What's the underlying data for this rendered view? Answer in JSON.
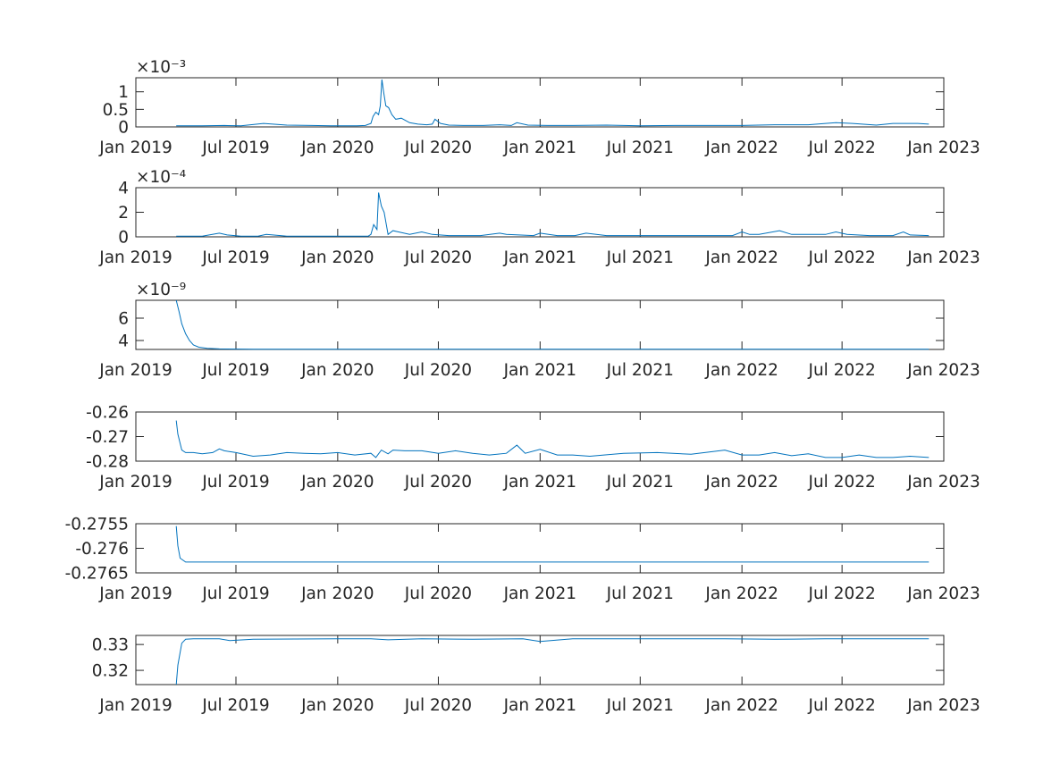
{
  "chart_data": [
    {
      "type": "line",
      "x_ticks": [
        "Jan 2019",
        "Jul 2019",
        "Jan 2020",
        "Jul 2020",
        "Jan 2021",
        "Jul 2021",
        "Jan 2022",
        "Jul 2022",
        "Jan 2023"
      ],
      "y_ticks": [
        "0",
        "0.5",
        "1"
      ],
      "y_tick_values": [
        0,
        0.5,
        1
      ],
      "exponent": "×10⁻³",
      "ylim": [
        0,
        1.4
      ],
      "series": [
        {
          "color": "#0072bd",
          "x": [
            "2019-03-15",
            "2019-05-01",
            "2019-06-10",
            "2019-07-10",
            "2019-08-20",
            "2019-10-01",
            "2019-11-15",
            "2019-12-20",
            "2020-01-25",
            "2020-02-05",
            "2020-02-20",
            "2020-03-01",
            "2020-03-05",
            "2020-03-10",
            "2020-03-15",
            "2020-03-18",
            "2020-03-21",
            "2020-03-24",
            "2020-03-28",
            "2020-04-02",
            "2020-04-08",
            "2020-04-15",
            "2020-04-25",
            "2020-05-10",
            "2020-05-25",
            "2020-06-10",
            "2020-06-20",
            "2020-06-25",
            "2020-07-05",
            "2020-07-20",
            "2020-08-15",
            "2020-09-20",
            "2020-10-20",
            "2020-11-10",
            "2020-11-20",
            "2020-12-10",
            "2021-01-15",
            "2021-03-01",
            "2021-05-01",
            "2021-07-01",
            "2021-09-01",
            "2021-11-01",
            "2022-01-01",
            "2022-03-01",
            "2022-05-01",
            "2022-06-01",
            "2022-06-20",
            "2022-07-20",
            "2022-09-01",
            "2022-10-01",
            "2022-11-15",
            "2022-12-05"
          ],
          "y": [
            0.03,
            0.03,
            0.04,
            0.03,
            0.1,
            0.05,
            0.04,
            0.03,
            0.03,
            0.03,
            0.04,
            0.1,
            0.3,
            0.42,
            0.35,
            0.6,
            1.35,
            1.0,
            0.6,
            0.55,
            0.35,
            0.22,
            0.25,
            0.12,
            0.08,
            0.06,
            0.08,
            0.22,
            0.1,
            0.05,
            0.04,
            0.04,
            0.06,
            0.04,
            0.12,
            0.05,
            0.04,
            0.04,
            0.05,
            0.03,
            0.04,
            0.04,
            0.04,
            0.06,
            0.06,
            0.1,
            0.12,
            0.1,
            0.05,
            0.1,
            0.1,
            0.08
          ]
        }
      ]
    },
    {
      "type": "line",
      "x_ticks": [
        "Jan 2019",
        "Jul 2019",
        "Jan 2020",
        "Jul 2020",
        "Jan 2021",
        "Jul 2021",
        "Jan 2022",
        "Jul 2022",
        "Jan 2023"
      ],
      "y_ticks": [
        "0",
        "2",
        "4"
      ],
      "y_tick_values": [
        0,
        2,
        4
      ],
      "exponent": "×10⁻⁴",
      "ylim": [
        0,
        4
      ],
      "series": [
        {
          "color": "#0072bd",
          "x": [
            "2019-03-15",
            "2019-05-01",
            "2019-06-01",
            "2019-06-15",
            "2019-07-10",
            "2019-08-10",
            "2019-08-25",
            "2019-10-01",
            "2019-12-01",
            "2020-02-01",
            "2020-02-25",
            "2020-03-01",
            "2020-03-06",
            "2020-03-12",
            "2020-03-15",
            "2020-03-20",
            "2020-03-25",
            "2020-04-01",
            "2020-04-10",
            "2020-04-20",
            "2020-05-10",
            "2020-06-01",
            "2020-06-20",
            "2020-07-20",
            "2020-09-15",
            "2020-10-20",
            "2020-11-01",
            "2020-12-20",
            "2021-01-01",
            "2021-02-01",
            "2021-03-05",
            "2021-03-25",
            "2021-05-01",
            "2021-07-01",
            "2021-10-01",
            "2021-12-15",
            "2022-01-01",
            "2022-01-15",
            "2022-02-01",
            "2022-03-10",
            "2022-04-01",
            "2022-06-01",
            "2022-06-20",
            "2022-07-10",
            "2022-08-20",
            "2022-10-01",
            "2022-10-20",
            "2022-11-01",
            "2022-12-05"
          ],
          "y": [
            0.05,
            0.05,
            0.3,
            0.15,
            0.05,
            0.05,
            0.2,
            0.05,
            0.05,
            0.05,
            0.05,
            0.2,
            1.0,
            0.6,
            3.6,
            2.5,
            2.0,
            0.2,
            0.5,
            0.4,
            0.2,
            0.4,
            0.2,
            0.1,
            0.1,
            0.3,
            0.2,
            0.1,
            0.3,
            0.1,
            0.1,
            0.3,
            0.1,
            0.1,
            0.1,
            0.1,
            0.4,
            0.2,
            0.2,
            0.5,
            0.2,
            0.2,
            0.4,
            0.2,
            0.1,
            0.1,
            0.4,
            0.15,
            0.1
          ]
        }
      ]
    },
    {
      "type": "line",
      "x_ticks": [
        "Jan 2019",
        "Jul 2019",
        "Jan 2020",
        "Jul 2020",
        "Jan 2021",
        "Jul 2021",
        "Jan 2022",
        "Jul 2022",
        "Jan 2023"
      ],
      "y_ticks": [
        "4",
        "6"
      ],
      "y_tick_values": [
        4,
        6
      ],
      "exponent": "×10⁻⁹",
      "ylim": [
        3.2,
        7.6
      ],
      "series": [
        {
          "color": "#0072bd",
          "x": [
            "2019-03-15",
            "2019-03-20",
            "2019-03-25",
            "2019-04-01",
            "2019-04-08",
            "2019-04-15",
            "2019-04-25",
            "2019-05-10",
            "2019-06-01",
            "2019-08-01",
            "2020-01-01",
            "2021-01-01",
            "2022-01-01",
            "2022-12-05"
          ],
          "y": [
            7.6,
            6.6,
            5.5,
            4.6,
            4.0,
            3.6,
            3.4,
            3.3,
            3.25,
            3.22,
            3.22,
            3.22,
            3.22,
            3.22
          ]
        }
      ]
    },
    {
      "type": "line",
      "x_ticks": [
        "Jan 2019",
        "Jul 2019",
        "Jan 2020",
        "Jul 2020",
        "Jan 2021",
        "Jul 2021",
        "Jan 2022",
        "Jul 2022",
        "Jan 2023"
      ],
      "y_ticks": [
        "-0.28",
        "-0.27",
        "-0.26"
      ],
      "y_tick_values": [
        -0.28,
        -0.27,
        -0.26
      ],
      "exponent": "",
      "ylim": [
        -0.28,
        -0.26
      ],
      "series": [
        {
          "color": "#0072bd",
          "x": [
            "2019-03-15",
            "2019-03-18",
            "2019-03-25",
            "2019-04-01",
            "2019-04-15",
            "2019-05-01",
            "2019-05-20",
            "2019-06-01",
            "2019-06-10",
            "2019-07-01",
            "2019-08-01",
            "2019-09-01",
            "2019-10-01",
            "2019-11-01",
            "2019-12-01",
            "2020-01-01",
            "2020-02-01",
            "2020-03-01",
            "2020-03-10",
            "2020-03-20",
            "2020-04-01",
            "2020-04-10",
            "2020-05-01",
            "2020-06-01",
            "2020-07-01",
            "2020-08-01",
            "2020-09-01",
            "2020-10-01",
            "2020-11-01",
            "2020-11-20",
            "2020-12-05",
            "2021-01-01",
            "2021-02-01",
            "2021-03-01",
            "2021-04-01",
            "2021-06-01",
            "2021-08-01",
            "2021-10-01",
            "2021-12-01",
            "2022-01-01",
            "2022-02-01",
            "2022-03-01",
            "2022-04-01",
            "2022-05-01",
            "2022-06-01",
            "2022-07-01",
            "2022-08-01",
            "2022-09-01",
            "2022-10-01",
            "2022-11-01",
            "2022-12-05"
          ],
          "y": [
            -0.2635,
            -0.269,
            -0.2755,
            -0.2765,
            -0.2765,
            -0.277,
            -0.2765,
            -0.275,
            -0.2758,
            -0.2765,
            -0.278,
            -0.2775,
            -0.2765,
            -0.2768,
            -0.277,
            -0.2765,
            -0.2775,
            -0.2768,
            -0.2785,
            -0.2755,
            -0.277,
            -0.2755,
            -0.2758,
            -0.2758,
            -0.2768,
            -0.2758,
            -0.2768,
            -0.2775,
            -0.2768,
            -0.2735,
            -0.2768,
            -0.2752,
            -0.2775,
            -0.2775,
            -0.278,
            -0.2768,
            -0.2765,
            -0.2772,
            -0.2755,
            -0.2775,
            -0.2775,
            -0.2765,
            -0.2778,
            -0.277,
            -0.2785,
            -0.2785,
            -0.2775,
            -0.2785,
            -0.2785,
            -0.278,
            -0.2785
          ]
        }
      ]
    },
    {
      "type": "line",
      "x_ticks": [
        "Jan 2019",
        "Jul 2019",
        "Jan 2020",
        "Jul 2020",
        "Jan 2021",
        "Jul 2021",
        "Jan 2022",
        "Jul 2022",
        "Jan 2023"
      ],
      "y_ticks": [
        "-0.2765",
        "-0.276",
        "-0.2755"
      ],
      "y_tick_values": [
        -0.2765,
        -0.276,
        -0.2755
      ],
      "exponent": "",
      "ylim": [
        -0.2765,
        -0.2755
      ],
      "series": [
        {
          "color": "#0072bd",
          "x": [
            "2019-03-15",
            "2019-03-18",
            "2019-03-22",
            "2019-04-01",
            "2019-05-01",
            "2020-01-01",
            "2021-01-01",
            "2022-01-01",
            "2022-12-05"
          ],
          "y": [
            -0.27555,
            -0.27595,
            -0.2762,
            -0.27628,
            -0.27628,
            -0.27628,
            -0.27628,
            -0.27628,
            -0.27628
          ]
        }
      ]
    },
    {
      "type": "line",
      "x_ticks": [
        "Jan 2019",
        "Jul 2019",
        "Jan 2020",
        "Jul 2020",
        "Jan 2021",
        "Jul 2021",
        "Jan 2022",
        "Jul 2022",
        "Jan 2023"
      ],
      "y_ticks": [
        "0.32",
        "0.33"
      ],
      "y_tick_values": [
        0.32,
        0.33
      ],
      "exponent": "",
      "ylim": [
        0.3145,
        0.3335
      ],
      "series": [
        {
          "color": "#0072bd",
          "x": [
            "2019-03-15",
            "2019-03-18",
            "2019-03-25",
            "2019-04-01",
            "2019-04-15",
            "2019-06-01",
            "2019-06-20",
            "2019-08-01",
            "2020-01-01",
            "2020-03-01",
            "2020-04-01",
            "2020-06-01",
            "2020-09-01",
            "2020-12-01",
            "2021-01-01",
            "2021-03-01",
            "2021-06-01",
            "2021-09-01",
            "2021-12-01",
            "2022-03-01",
            "2022-06-01",
            "2022-09-01",
            "2022-12-05"
          ],
          "y": [
            0.3145,
            0.322,
            0.3305,
            0.332,
            0.3322,
            0.3322,
            0.3315,
            0.332,
            0.3322,
            0.3322,
            0.3318,
            0.3322,
            0.332,
            0.3322,
            0.3312,
            0.3322,
            0.3322,
            0.3322,
            0.3322,
            0.332,
            0.3322,
            0.3322,
            0.3322
          ]
        }
      ]
    }
  ]
}
